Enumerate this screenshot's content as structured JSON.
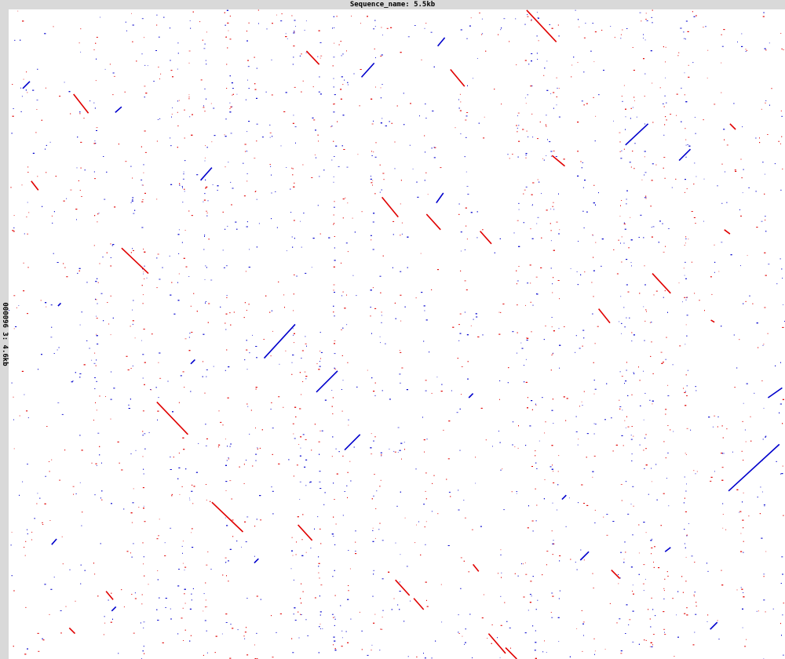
{
  "chart_data": {
    "type": "scatter",
    "subtype": "dot-plot",
    "title": "Sequence_name: 5.5kb",
    "xlabel": "Sequence_name: 5.5kb",
    "ylabel": "000096 3: 4.6kb",
    "xlim": [
      0,
      5500
    ],
    "ylim": [
      0,
      4600
    ],
    "y_inverted": true,
    "grid": false,
    "colors": {
      "forward": "#e00000",
      "reverse": "#0000cc",
      "background": "#ffffff",
      "frame": "#d9d9d9"
    },
    "series": [
      {
        "name": "forward",
        "color": "#e00000",
        "segments": [
          [
            3670,
            5,
            3880,
            230
          ],
          [
            2110,
            295,
            2200,
            390
          ],
          [
            3130,
            425,
            3230,
            545
          ],
          [
            460,
            600,
            565,
            735
          ],
          [
            3850,
            1035,
            3940,
            1110
          ],
          [
            160,
            1215,
            210,
            1280
          ],
          [
            2645,
            1330,
            2760,
            1470
          ],
          [
            2960,
            1450,
            3060,
            1560
          ],
          [
            3340,
            1570,
            3420,
            1660
          ],
          [
            800,
            1690,
            990,
            1870
          ],
          [
            4560,
            1870,
            4690,
            2010
          ],
          [
            4180,
            2120,
            4260,
            2220
          ],
          [
            4975,
            2200,
            5000,
            2215
          ],
          [
            1050,
            2780,
            1270,
            3010
          ],
          [
            1440,
            3490,
            1660,
            3700
          ],
          [
            2050,
            3650,
            2150,
            3760
          ],
          [
            4270,
            3970,
            4330,
            4030
          ],
          [
            3290,
            3930,
            3330,
            3980
          ],
          [
            2740,
            4040,
            2840,
            4150
          ],
          [
            2870,
            4170,
            2940,
            4250
          ],
          [
            690,
            4120,
            740,
            4180
          ],
          [
            430,
            4380,
            470,
            4420
          ],
          [
            3400,
            4420,
            3520,
            4560
          ],
          [
            3520,
            4520,
            3600,
            4600
          ],
          [
            5110,
            810,
            5150,
            850
          ],
          [
            5070,
            1560,
            5110,
            1590
          ]
        ]
      },
      {
        "name": "reverse",
        "color": "#0000cc",
        "segments": [
          [
            100,
            560,
            150,
            510
          ],
          [
            755,
            730,
            800,
            690
          ],
          [
            2500,
            480,
            2590,
            380
          ],
          [
            3040,
            260,
            3090,
            200
          ],
          [
            4370,
            960,
            4530,
            810
          ],
          [
            4750,
            1070,
            4830,
            990
          ],
          [
            1360,
            1210,
            1440,
            1120
          ],
          [
            1810,
            2470,
            2030,
            2230
          ],
          [
            2180,
            2710,
            2330,
            2560
          ],
          [
            5380,
            2750,
            5480,
            2680
          ],
          [
            2380,
            3120,
            2490,
            3010
          ],
          [
            5100,
            3410,
            5460,
            3080
          ],
          [
            3920,
            3470,
            3950,
            3440
          ],
          [
            4050,
            3900,
            4110,
            3840
          ],
          [
            4650,
            3840,
            4690,
            3810
          ],
          [
            4970,
            4390,
            5020,
            4340
          ],
          [
            305,
            3790,
            340,
            3750
          ],
          [
            1740,
            3920,
            1770,
            3890
          ],
          [
            350,
            2100,
            370,
            2080
          ],
          [
            3260,
            2750,
            3290,
            2720
          ],
          [
            730,
            4260,
            760,
            4230
          ],
          [
            1290,
            2510,
            1320,
            2480
          ],
          [
            3030,
            1370,
            3080,
            1300
          ]
        ]
      }
    ]
  }
}
